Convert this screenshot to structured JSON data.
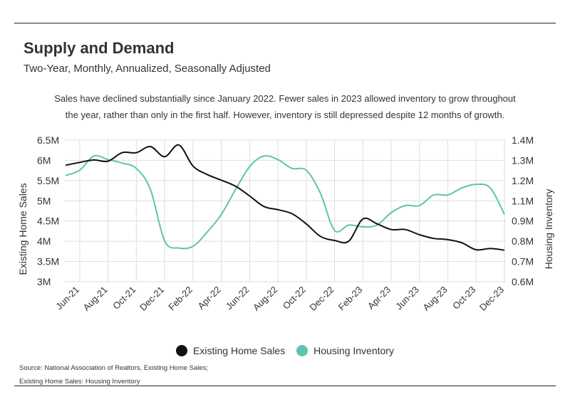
{
  "title": "Supply and Demand",
  "subtitle": "Two-Year, Monthly, Annualized, Seasonally Adjusted",
  "description": "Sales have declined substantially since January 2022. Fewer sales in 2023 allowed inventory to grow throughout the year, rather than only in the first half. However, inventory is still depressed despite 12 months of growth.",
  "source_line1": "Source:  National Association of Realtors, Existing Home Sales;",
  "source_line2": "Existing Home Sales: Housing Inventory",
  "colors": {
    "sales": "#111111",
    "inventory": "#5cc4b0",
    "grid": "#dddddd"
  },
  "chart_data": {
    "type": "line",
    "x": [
      "May-21",
      "Jun-21",
      "Jul-21",
      "Aug-21",
      "Sep-21",
      "Oct-21",
      "Nov-21",
      "Dec-21",
      "Jan-22",
      "Feb-22",
      "Mar-22",
      "Apr-22",
      "May-22",
      "Jun-22",
      "Jul-22",
      "Aug-22",
      "Sep-22",
      "Oct-22",
      "Nov-22",
      "Dec-22",
      "Jan-23",
      "Feb-23",
      "Mar-23",
      "Apr-23",
      "May-23",
      "Jun-23",
      "Jul-23",
      "Aug-23",
      "Sep-23",
      "Oct-23",
      "Nov-23",
      "Dec-23"
    ],
    "tick_labels": [
      "Jun-21",
      "Aug-21",
      "Oct-21",
      "Dec-21",
      "Feb-22",
      "Apr-22",
      "Jun-22",
      "Aug-22",
      "Oct-22",
      "Dec-22",
      "Feb-23",
      "Apr-23",
      "Jun-23",
      "Aug-23",
      "Oct-23",
      "Dec-23"
    ],
    "series": [
      {
        "name": "Existing Home Sales",
        "axis": "left",
        "values": [
          5.88,
          5.95,
          6.01,
          5.98,
          6.19,
          6.19,
          6.34,
          6.09,
          6.38,
          5.86,
          5.65,
          5.51,
          5.36,
          5.12,
          4.86,
          4.78,
          4.68,
          4.43,
          4.12,
          4.02,
          4.0,
          4.55,
          4.43,
          4.29,
          4.29,
          4.16,
          4.07,
          4.04,
          3.96,
          3.79,
          3.82,
          3.78
        ]
      },
      {
        "name": "Housing Inventory",
        "axis": "right",
        "values": [
          1.2,
          1.23,
          1.31,
          1.29,
          1.27,
          1.24,
          1.12,
          0.83,
          0.79,
          0.8,
          0.88,
          0.98,
          1.12,
          1.25,
          1.31,
          1.29,
          1.24,
          1.23,
          1.1,
          0.89,
          0.92,
          0.91,
          0.92,
          0.99,
          1.03,
          1.03,
          1.09,
          1.09,
          1.13,
          1.15,
          1.13,
          0.98
        ]
      }
    ],
    "left_axis": {
      "label": "Existing Home Sales",
      "ticks": [
        "6.5M",
        "6M",
        "5.5M",
        "5M",
        "4.5M",
        "4M",
        "3.5M",
        "3M"
      ],
      "ylim": [
        3,
        6.5
      ]
    },
    "right_axis": {
      "label": "Housing Inventory",
      "ticks": [
        "1.4M",
        "1.3M",
        "1.2M",
        "1.1M",
        "0.9M",
        "0.8M",
        "0.7M",
        "0.6M"
      ],
      "ylim": [
        0.6,
        1.4
      ]
    },
    "grid": true,
    "legend_position": "bottom"
  }
}
